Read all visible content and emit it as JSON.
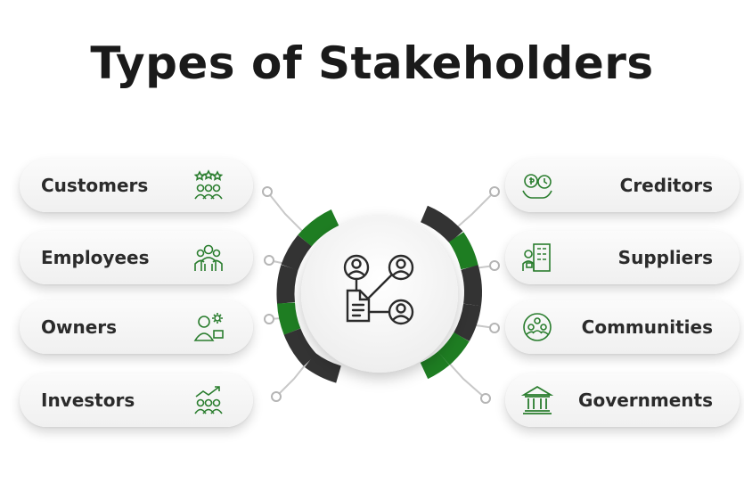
{
  "title": "Types of Stakeholders",
  "colors": {
    "accent_green": "#1e7d22",
    "dark_segment": "#333333",
    "icon_green": "#2a7d2e"
  },
  "stakeholders_left": [
    {
      "label": "Customers",
      "icon": "star-rating-people-icon"
    },
    {
      "label": "Employees",
      "icon": "team-group-icon"
    },
    {
      "label": "Owners",
      "icon": "owner-with-gear-icon"
    },
    {
      "label": "Investors",
      "icon": "growth-people-icon"
    }
  ],
  "stakeholders_right": [
    {
      "label": "Creditors",
      "icon": "money-exchange-icon"
    },
    {
      "label": "Suppliers",
      "icon": "supplier-building-icon"
    },
    {
      "label": "Communities",
      "icon": "community-circle-icon"
    },
    {
      "label": "Governments",
      "icon": "government-building-icon"
    }
  ],
  "center_icon": "stakeholder-network-icon"
}
